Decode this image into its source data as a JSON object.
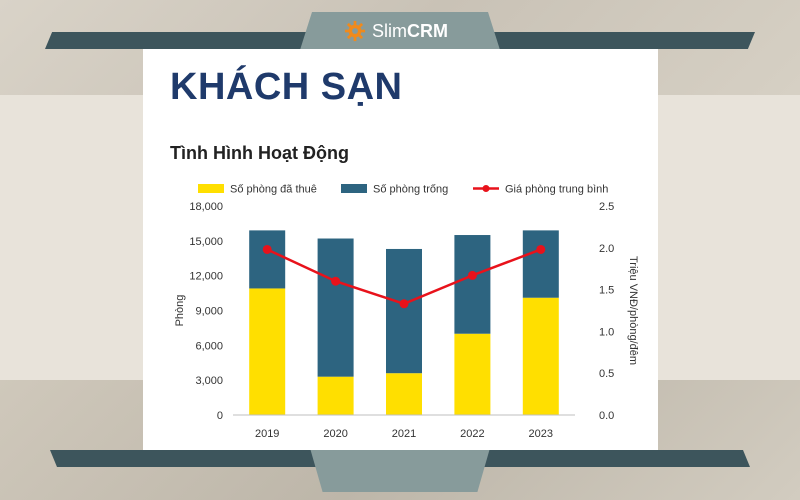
{
  "brand": {
    "name_part1": "Slim",
    "name_part2": "CRM",
    "icon": "gear-icon",
    "icon_color": "#f08a1c"
  },
  "page": {
    "title": "KHÁCH SẠN",
    "subtitle": "Tình Hình Hoạt Động"
  },
  "chart_data": {
    "type": "bar",
    "stacked": true,
    "categories": [
      "2019",
      "2020",
      "2021",
      "2022",
      "2023"
    ],
    "series": [
      {
        "name": "Số phòng đã thuê",
        "type": "bar",
        "axis": "left",
        "color": "#ffdf00",
        "values": [
          10900,
          3300,
          3600,
          7000,
          10100
        ]
      },
      {
        "name": "Số phòng trống",
        "type": "bar",
        "axis": "left",
        "color": "#2d6480",
        "values": [
          5000,
          11900,
          10700,
          8500,
          5800
        ]
      },
      {
        "name": "Giá phòng trung bình",
        "type": "line",
        "axis": "right",
        "color": "#e8121b",
        "values": [
          1.98,
          1.6,
          1.33,
          1.67,
          1.98
        ]
      }
    ],
    "ylabel": "Phòng",
    "y2label": "Triệu VNĐ/phòng/đêm",
    "ylim": [
      0,
      18000
    ],
    "y2lim": [
      0,
      2.5
    ],
    "yticks": [
      "0",
      "3,000",
      "6,000",
      "9,000",
      "12,000",
      "15,000",
      "18,000"
    ],
    "y2ticks": [
      "0.0",
      "0.5",
      "1.0",
      "1.5",
      "2.0",
      "2.5"
    ],
    "legend_position": "top",
    "grid": false
  }
}
